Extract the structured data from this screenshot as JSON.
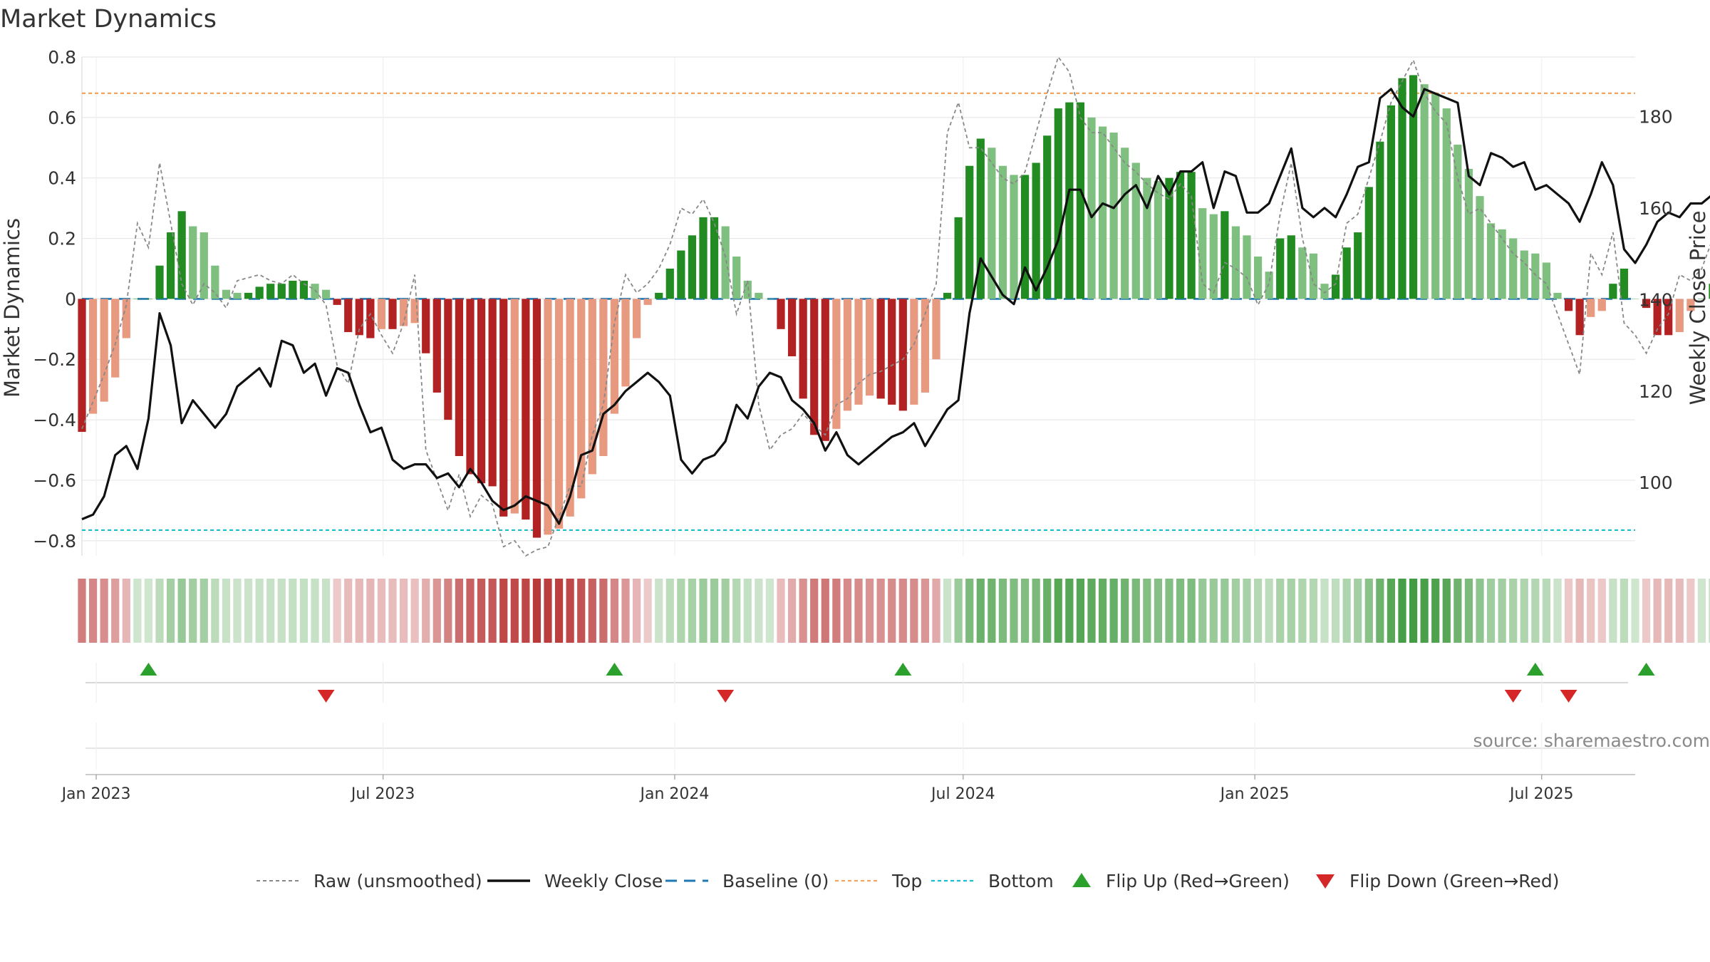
{
  "chart_data": {
    "type": "bar",
    "title": "Market Dynamics",
    "source": "source: sharemaestro.com",
    "y_left": {
      "label": "Market Dynamics",
      "range": [
        -0.85,
        0.8
      ],
      "ticks": [
        0.8,
        0.6,
        0.4,
        0.2,
        0,
        -0.2,
        -0.4,
        -0.6,
        -0.8
      ],
      "tick_labels": [
        "0.8",
        "0.6",
        "0.4",
        "0.2",
        "0",
        "−0.2",
        "−0.4",
        "−0.6",
        "−0.8"
      ]
    },
    "y_right": {
      "label": "Weekly Close Price",
      "range": [
        84,
        193
      ],
      "ticks": [
        180,
        160,
        140,
        120,
        100
      ],
      "tick_labels": [
        "180",
        "160",
        "140",
        "120",
        "100"
      ]
    },
    "x_axis": {
      "start": "2022-12-23",
      "end": "2025-08-29",
      "ticks": [
        "2023-01-01",
        "2023-07-01",
        "2024-01-01",
        "2024-07-01",
        "2025-01-01",
        "2025-07-01"
      ],
      "tick_labels": [
        "Jan 2023",
        "Jul 2023",
        "Jan 2024",
        "Jul 2024",
        "Jan 2025",
        "Jul 2025"
      ]
    },
    "reference_lines": {
      "top": 0.68,
      "bottom": -0.765,
      "baseline": 0
    },
    "series": [
      {
        "name": "Market Dynamics",
        "weeks_from": "2022-12-23",
        "values": [
          -0.44,
          -0.38,
          -0.34,
          -0.26,
          -0.13,
          0,
          0,
          0.11,
          0.22,
          0.29,
          0.24,
          0.22,
          0.11,
          0.03,
          0.02,
          0.02,
          0.04,
          0.05,
          0.05,
          0.06,
          0.06,
          0.05,
          0.03,
          -0.02,
          -0.11,
          -0.12,
          -0.13,
          -0.1,
          -0.1,
          -0.09,
          -0.08,
          -0.18,
          -0.31,
          -0.4,
          -0.52,
          -0.58,
          -0.61,
          -0.62,
          -0.72,
          -0.71,
          -0.73,
          -0.79,
          -0.78,
          -0.76,
          -0.72,
          -0.66,
          -0.58,
          -0.52,
          -0.38,
          -0.29,
          -0.13,
          -0.02,
          0.02,
          0.1,
          0.16,
          0.21,
          0.27,
          0.27,
          0.24,
          0.14,
          0.06,
          0.02,
          0,
          -0.1,
          -0.19,
          -0.33,
          -0.45,
          -0.47,
          -0.43,
          -0.37,
          -0.35,
          -0.32,
          -0.33,
          -0.35,
          -0.37,
          -0.35,
          -0.31,
          -0.2,
          0.02,
          0.27,
          0.44,
          0.53,
          0.5,
          0.44,
          0.41,
          0.41,
          0.45,
          0.54,
          0.63,
          0.65,
          0.65,
          0.6,
          0.57,
          0.55,
          0.5,
          0.45,
          0.4,
          0.39,
          0.4,
          0.42,
          0.42,
          0.3,
          0.28,
          0.29,
          0.24,
          0.21,
          0.14,
          0.09,
          0.2,
          0.21,
          0.17,
          0.15,
          0.05,
          0.08,
          0.17,
          0.22,
          0.37,
          0.52,
          0.64,
          0.73,
          0.74,
          0.71,
          0.68,
          0.63,
          0.51,
          0.43,
          0.34,
          0.25,
          0.23,
          0.2,
          0.16,
          0.15,
          0.12,
          0.02,
          -0.04,
          -0.12,
          -0.06,
          -0.04,
          0.05,
          0.1,
          0,
          -0.03,
          -0.12,
          -0.12,
          -0.11,
          -0.04,
          0,
          0.05,
          0.15
        ]
      },
      {
        "name": "Raw (unsmoothed)",
        "weeks_from": "2022-12-23",
        "values": [
          -0.43,
          -0.34,
          -0.25,
          -0.15,
          -0.02,
          0.25,
          0.17,
          0.45,
          0.25,
          0.05,
          -0.02,
          0.05,
          0.02,
          -0.03,
          0.06,
          0.07,
          0.08,
          0.06,
          0.05,
          0.08,
          0.05,
          0.03,
          -0.02,
          -0.22,
          -0.28,
          -0.1,
          -0.05,
          -0.12,
          -0.18,
          -0.08,
          0.08,
          -0.5,
          -0.6,
          -0.7,
          -0.58,
          -0.72,
          -0.65,
          -0.68,
          -0.82,
          -0.8,
          -0.85,
          -0.83,
          -0.82,
          -0.72,
          -0.62,
          -0.62,
          -0.45,
          -0.35,
          -0.08,
          0.08,
          0.02,
          0.05,
          0.1,
          0.18,
          0.3,
          0.28,
          0.33,
          0.25,
          0.14,
          -0.05,
          0.06,
          -0.35,
          -0.5,
          -0.45,
          -0.43,
          -0.38,
          -0.42,
          -0.45,
          -0.35,
          -0.33,
          -0.28,
          -0.25,
          -0.24,
          -0.22,
          -0.2,
          -0.15,
          -0.05,
          0.05,
          0.55,
          0.65,
          0.5,
          0.5,
          0.45,
          0.4,
          0.38,
          0.42,
          0.55,
          0.68,
          0.8,
          0.75,
          0.6,
          0.55,
          0.55,
          0.5,
          0.45,
          0.42,
          0.38,
          0.35,
          0.33,
          0.38,
          0.34,
          0.05,
          0.02,
          0.12,
          0.1,
          0.07,
          -0.02,
          0.05,
          0.28,
          0.45,
          0.2,
          0.05,
          0.02,
          0.05,
          0.25,
          0.28,
          0.4,
          0.52,
          0.65,
          0.72,
          0.79,
          0.68,
          0.62,
          0.58,
          0.4,
          0.28,
          0.3,
          0.25,
          0.2,
          0.15,
          0.12,
          0.08,
          0.05,
          -0.05,
          -0.15,
          -0.25,
          0.15,
          0.08,
          0.22,
          -0.08,
          -0.12,
          -0.18,
          -0.1,
          -0.05,
          0.08,
          0.06,
          0.1,
          0.2
        ]
      },
      {
        "name": "Weekly Close",
        "weeks_from": "2022-12-23",
        "values": [
          92,
          93,
          97,
          106,
          108,
          103,
          114,
          137,
          130,
          113,
          118,
          115,
          112,
          115,
          121,
          123,
          125,
          121,
          131,
          130,
          124,
          126,
          119,
          125,
          124,
          117,
          111,
          112,
          105,
          103,
          104,
          104,
          101,
          102,
          99,
          103,
          100,
          96,
          94,
          95,
          97,
          96,
          95,
          91,
          97,
          106,
          107,
          115,
          117,
          120,
          122,
          124,
          122,
          119,
          105,
          102,
          105,
          106,
          109,
          117,
          114,
          121,
          124,
          123,
          118,
          116,
          113,
          107,
          111,
          106,
          104,
          106,
          108,
          110,
          111,
          113,
          108,
          112,
          116,
          118,
          137,
          149,
          145,
          141,
          139,
          147,
          142,
          147,
          153,
          164,
          164,
          158,
          161,
          160,
          163,
          165,
          160,
          167,
          163,
          168,
          168,
          170,
          160,
          168,
          167,
          159,
          159,
          161,
          167,
          173,
          160,
          158,
          160,
          158,
          163,
          169,
          170,
          184,
          186,
          182,
          180,
          186,
          185,
          184,
          183,
          167,
          165,
          172,
          171,
          169,
          170,
          164,
          165,
          163,
          161,
          157,
          163,
          170,
          165,
          151,
          148,
          152,
          157,
          159,
          158,
          161,
          161,
          163,
          170
        ]
      }
    ],
    "flips": {
      "up": [
        "2023-02-03",
        "2023-11-24",
        "2024-05-24",
        "2025-06-27",
        "2025-09-05"
      ],
      "down": [
        "2023-05-26",
        "2024-02-02",
        "2025-06-13",
        "2025-07-18"
      ]
    },
    "colors": {
      "strong_positive": "#228b22",
      "positive": "#7fbf7f",
      "strong_negative": "#b22222",
      "negative": "#e89a80",
      "raw": "#888888",
      "close": "#111111",
      "baseline": "#1f77b4",
      "top": "#f4a460",
      "bottom": "#17becf",
      "flip_up": "#2ca02c",
      "flip_down": "#d62728"
    },
    "legend": {
      "position": "bottom",
      "items": [
        {
          "label": "Raw (unsmoothed)",
          "style": "raw-line"
        },
        {
          "label": "Weekly Close",
          "style": "close-line"
        },
        {
          "label": "Baseline (0)",
          "style": "baseline-line"
        },
        {
          "label": "Top",
          "style": "top-line"
        },
        {
          "label": "Bottom",
          "style": "bottom-line"
        },
        {
          "label": "Flip Up (Red→Green)",
          "style": "flip-up-marker"
        },
        {
          "label": "Flip Down (Green→Red)",
          "style": "flip-down-marker"
        }
      ]
    },
    "grid": true
  }
}
